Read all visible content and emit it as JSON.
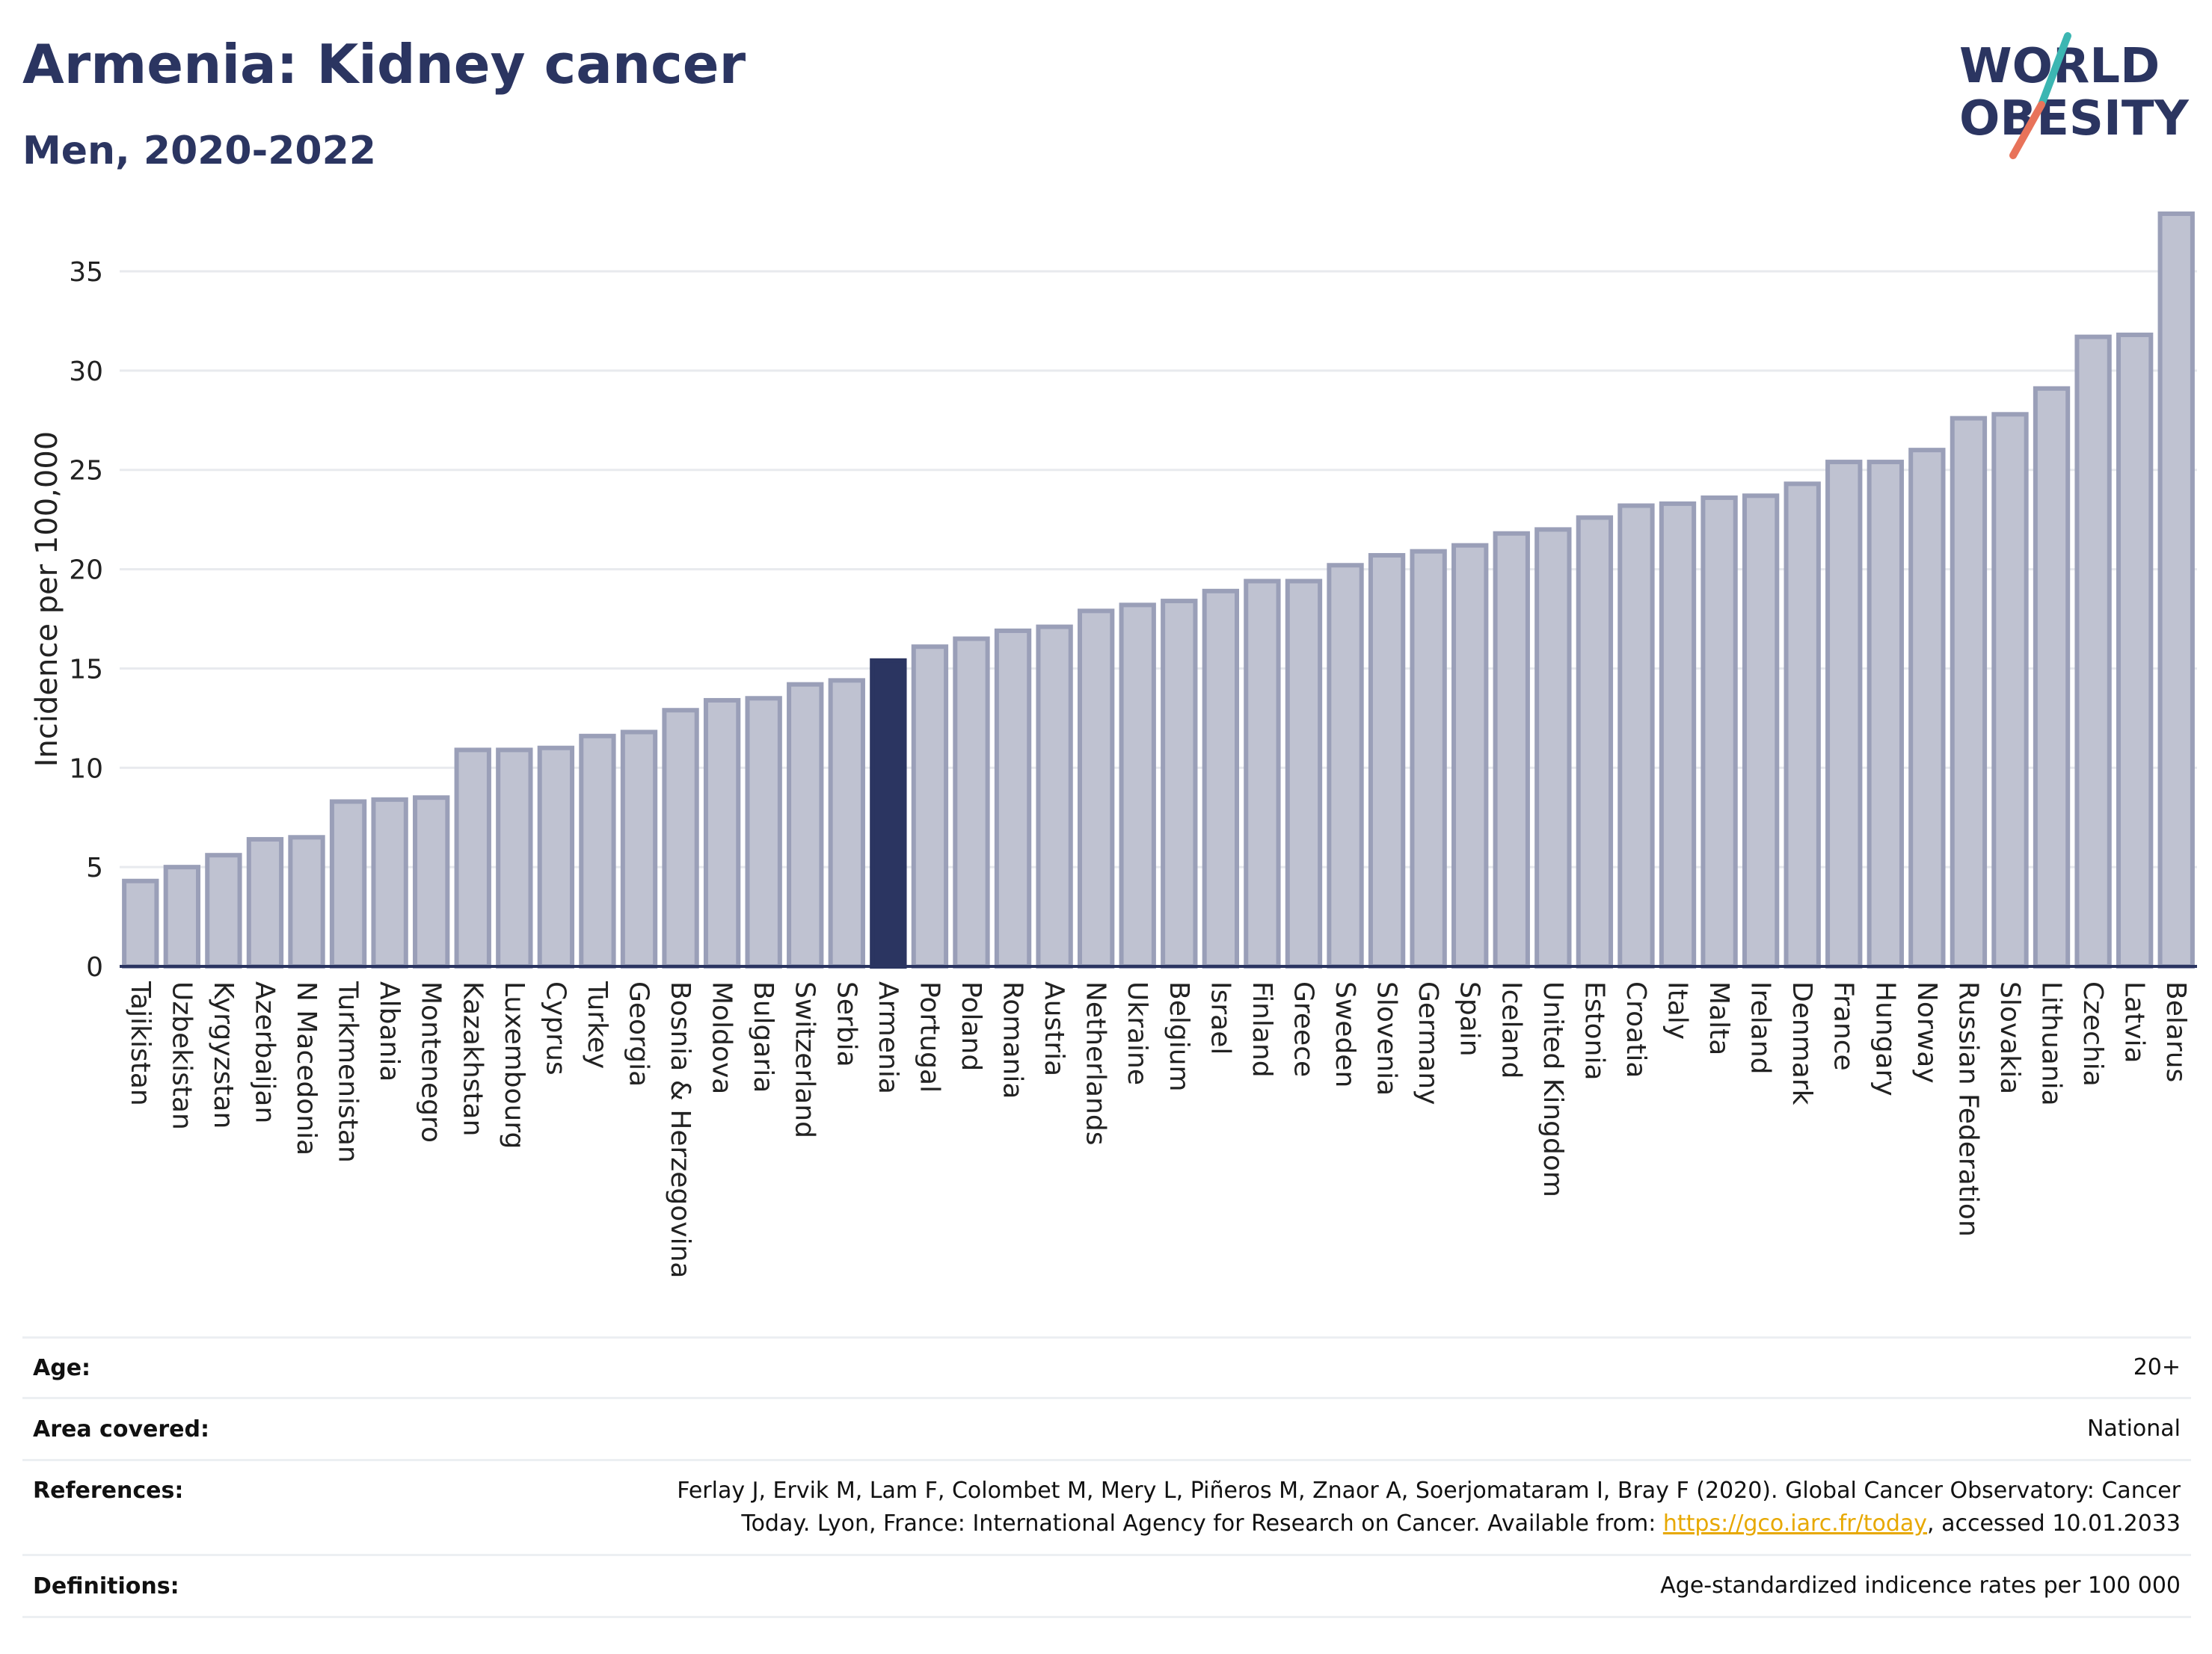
{
  "title": "Armenia: Kidney cancer",
  "subtitle": "Men, 2020-2022",
  "logo": {
    "line1": "WORLD",
    "line2": "OBESITY"
  },
  "colors": {
    "bar": "#bfc2d1",
    "bar_stroke": "#9a9fb8",
    "highlight": "#2b3561",
    "text": "#2b3561",
    "grid": "#e8eaee",
    "logo_teal": "#3cb6b2",
    "logo_red": "#e8735a"
  },
  "chart_data": {
    "type": "bar",
    "ylabel": "Incidence per 100,000",
    "xlabel": "",
    "ylim": [
      0,
      38.5
    ],
    "yticks": [
      0,
      5,
      10,
      15,
      20,
      25,
      30,
      35
    ],
    "grid": true,
    "highlight": "Armenia",
    "categories": [
      "Tajikistan",
      "Uzbekistan",
      "Kyrgyzstan",
      "Azerbaijan",
      "N Macedonia",
      "Turkmenistan",
      "Albania",
      "Montenegro",
      "Kazakhstan",
      "Luxembourg",
      "Cyprus",
      "Turkey",
      "Georgia",
      "Bosnia & Herzegovina",
      "Moldova",
      "Bulgaria",
      "Switzerland",
      "Serbia",
      "Armenia",
      "Portugal",
      "Poland",
      "Romania",
      "Austria",
      "Netherlands",
      "Ukraine",
      "Belgium",
      "Israel",
      "Finland",
      "Greece",
      "Sweden",
      "Slovenia",
      "Germany",
      "Spain",
      "Iceland",
      "United Kingdom",
      "Estonia",
      "Croatia",
      "Italy",
      "Malta",
      "Ireland",
      "Denmark",
      "France",
      "Hungary",
      "Norway",
      "Russian Federation",
      "Slovakia",
      "Lithuania",
      "Czechia",
      "Latvia",
      "Belarus"
    ],
    "values": [
      4.3,
      5.0,
      5.6,
      6.4,
      6.5,
      8.3,
      8.4,
      8.5,
      10.9,
      10.9,
      11.0,
      11.6,
      11.8,
      12.9,
      13.4,
      13.5,
      14.2,
      14.4,
      15.4,
      16.1,
      16.5,
      16.9,
      17.1,
      17.9,
      18.2,
      18.4,
      18.9,
      19.4,
      19.4,
      20.2,
      20.7,
      20.9,
      21.2,
      21.8,
      22.0,
      22.6,
      23.2,
      23.3,
      23.6,
      23.7,
      24.3,
      25.4,
      25.4,
      26.0,
      27.6,
      27.8,
      29.1,
      31.7,
      31.8,
      37.9
    ]
  },
  "info": {
    "age_label": "Age:",
    "age_value": "20+",
    "area_label": "Area covered:",
    "area_value": "National",
    "ref_label": "References:",
    "ref_text1": "Ferlay J, Ervik M, Lam F, Colombet M, Mery L, Piñeros M, Znaor A, Soerjomataram I, Bray F (2020). Global Cancer Observatory: Cancer",
    "ref_text2a": "Today. Lyon, France: International Agency for Research on Cancer. Available from: ",
    "ref_link": "https://gco.iarc.fr/today",
    "ref_text2b": ", accessed 10.01.2033",
    "def_label": "Definitions:",
    "def_value": "Age-standardized indicence rates per 100 000"
  }
}
